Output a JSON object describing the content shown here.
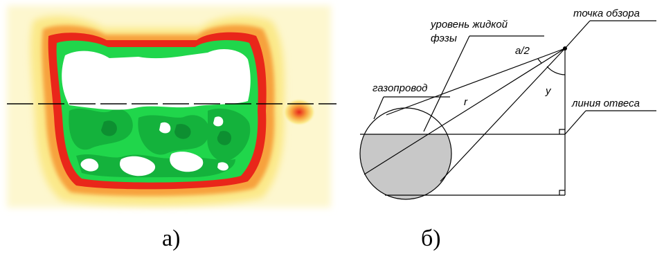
{
  "panel_a": {
    "caption": "а)"
  },
  "panel_b": {
    "caption": "б)",
    "labels": {
      "liquid_level_line1": "уровень жидкой",
      "liquid_level_line2": "фэзы",
      "view_point": "точка обзора",
      "half_angle": "a/2",
      "pipeline": "газопровод",
      "radius": "r",
      "angle": "y",
      "plumb_line": "линия отвеса"
    }
  },
  "colors": {
    "outer_haze": "#fdf7cf",
    "yellow": "#fbe98a",
    "orange": "#f7a23d",
    "red": "#e9261a",
    "bright_green": "#20d64b",
    "mid_green": "#14b23c",
    "dark_green": "#0d8f31",
    "cavity": "#ffffff",
    "liquid_fill": "#c8c8c8",
    "line": "#000000"
  }
}
